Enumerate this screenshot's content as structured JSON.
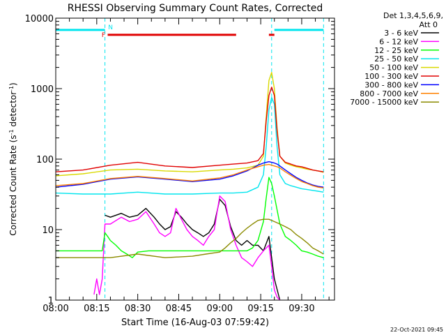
{
  "chart_data": {
    "type": "line",
    "title": "RHESSI Observing Summary Count Rates, Corrected",
    "xlabel": "Start Time (16-Aug-03 07:59:42)",
    "ylabel_main": "Corrected Count Rate (s",
    "ylabel_sup": "-1",
    "ylabel_mid": " detector",
    "ylabel_sup2": "-1",
    "ylabel_end": ")",
    "yscale": "log",
    "ylim": [
      1,
      10000
    ],
    "xlim_min": [
      0,
      102
    ],
    "x_ticks": [
      {
        "min": 0,
        "label": "08:00"
      },
      {
        "min": 15,
        "label": "08:15"
      },
      {
        "min": 30,
        "label": "08:30"
      },
      {
        "min": 45,
        "label": "08:45"
      },
      {
        "min": 60,
        "label": "09:00"
      },
      {
        "min": 75,
        "label": "09:15"
      },
      {
        "min": 90,
        "label": "09:30"
      }
    ],
    "y_ticks": [
      {
        "value": 1,
        "label": "1"
      },
      {
        "value": 10,
        "label": "10"
      },
      {
        "value": 100,
        "label": "100"
      },
      {
        "value": 1000,
        "label": "1000"
      },
      {
        "value": 10000,
        "label": "10000"
      }
    ],
    "legend_header": [
      "Det 1,3,4,5,6,9,",
      "Att 0"
    ],
    "legend_position": "top-right",
    "footer": "22-Oct-2021 09:45",
    "flags": [
      {
        "label": "N",
        "color": "#00e5ee",
        "level": 6800,
        "segments": [
          [
            0,
            18
          ],
          [
            80,
            98
          ]
        ]
      },
      {
        "label": "F",
        "color": "#e00000",
        "level": 5800,
        "segments": [
          [
            19,
            66
          ],
          [
            78,
            80
          ]
        ]
      }
    ],
    "night_markers_min": [
      18,
      79,
      98
    ],
    "series": [
      {
        "name": "3 - 6 keV",
        "color": "#000000",
        "x": [
          0,
          17,
          18,
          20,
          24,
          27,
          30,
          33,
          36,
          38,
          40,
          42,
          44,
          46,
          48,
          50,
          52,
          54,
          56,
          58,
          60,
          62,
          64,
          66,
          68,
          70,
          72,
          74,
          76,
          78,
          80,
          82,
          98
        ],
        "y": [
          null,
          null,
          16,
          15,
          17,
          15,
          16,
          20,
          15,
          12,
          10,
          11,
          18,
          15,
          12,
          10,
          9,
          8,
          9,
          12,
          27,
          22,
          11,
          7,
          6,
          7,
          6,
          6,
          5,
          8,
          2,
          1,
          null
        ]
      },
      {
        "name": "6 - 12 keV",
        "color": "#ff00ff",
        "x": [
          0,
          14,
          15,
          16,
          17,
          18,
          20,
          24,
          27,
          30,
          33,
          36,
          38,
          40,
          42,
          44,
          46,
          48,
          50,
          52,
          54,
          56,
          58,
          60,
          62,
          64,
          66,
          68,
          70,
          72,
          74,
          76,
          78,
          79,
          80,
          81,
          82,
          98
        ],
        "y": [
          null,
          1.2,
          2,
          1.2,
          2,
          12,
          12,
          15,
          13,
          14,
          18,
          12,
          9,
          8,
          9,
          20,
          14,
          10,
          8,
          7,
          6,
          8,
          10,
          30,
          25,
          10,
          6,
          4,
          3.5,
          3,
          4,
          5,
          6,
          3,
          1.4,
          1.1,
          1,
          null
        ]
      },
      {
        "name": "12 - 25 keV",
        "color": "#00ff00",
        "x": [
          0,
          17,
          18,
          19,
          20,
          22,
          24,
          26,
          28,
          30,
          34,
          40,
          50,
          60,
          66,
          70,
          72,
          74,
          76,
          77,
          78,
          79,
          80,
          82,
          84,
          86,
          88,
          90,
          92,
          94,
          96,
          98
        ],
        "y": [
          5,
          5,
          9,
          8,
          7,
          6,
          5,
          4.5,
          4,
          4.8,
          5,
          5,
          5,
          5,
          5,
          5,
          5.5,
          7,
          13,
          28,
          55,
          45,
          30,
          12,
          8,
          7,
          6,
          5,
          4.8,
          4.5,
          4.2,
          4
        ]
      },
      {
        "name": "25 - 50 keV",
        "color": "#00e5ee",
        "x": [
          0,
          10,
          20,
          30,
          40,
          50,
          60,
          65,
          70,
          74,
          76,
          77,
          78,
          79,
          80,
          81,
          82,
          84,
          86,
          88,
          90,
          92,
          94,
          96,
          98
        ],
        "y": [
          33,
          32,
          32,
          34,
          32,
          32,
          33,
          33,
          34,
          40,
          60,
          150,
          500,
          750,
          600,
          150,
          60,
          45,
          42,
          40,
          38,
          37,
          36,
          35,
          34
        ]
      },
      {
        "name": "50 - 100 keV",
        "color": "#d9d900",
        "x": [
          0,
          10,
          20,
          30,
          40,
          50,
          60,
          65,
          70,
          74,
          76,
          77,
          78,
          79,
          80,
          81,
          82,
          84,
          86,
          88,
          90,
          92,
          94,
          96,
          98
        ],
        "y": [
          58,
          62,
          70,
          72,
          68,
          66,
          70,
          72,
          75,
          82,
          110,
          400,
          1300,
          1700,
          1000,
          280,
          110,
          88,
          82,
          78,
          75,
          72,
          70,
          68,
          65
        ]
      },
      {
        "name": "100 - 300 keV",
        "color": "#e00000",
        "x": [
          0,
          10,
          20,
          30,
          40,
          50,
          60,
          65,
          70,
          74,
          76,
          77,
          78,
          79,
          80,
          81,
          82,
          84,
          86,
          88,
          90,
          92,
          94,
          96,
          98
        ],
        "y": [
          66,
          70,
          82,
          90,
          80,
          76,
          82,
          85,
          88,
          95,
          120,
          350,
          800,
          1050,
          800,
          250,
          110,
          90,
          85,
          80,
          78,
          74,
          70,
          68,
          66
        ]
      },
      {
        "name": "300 - 800 keV",
        "color": "#0000ff",
        "x": [
          0,
          10,
          20,
          30,
          40,
          50,
          60,
          65,
          70,
          74,
          76,
          78,
          79,
          80,
          81,
          82,
          84,
          86,
          88,
          90,
          92,
          94,
          96,
          98
        ],
        "y": [
          40,
          44,
          52,
          56,
          52,
          48,
          52,
          58,
          68,
          82,
          88,
          92,
          90,
          88,
          85,
          80,
          70,
          62,
          55,
          50,
          46,
          43,
          41,
          40
        ]
      },
      {
        "name": "800 - 7000 keV",
        "color": "#ff8000",
        "x": [
          0,
          10,
          20,
          30,
          40,
          50,
          60,
          65,
          70,
          74,
          76,
          78,
          79,
          80,
          81,
          82,
          84,
          86,
          88,
          90,
          92,
          94,
          96,
          98
        ],
        "y": [
          42,
          45,
          53,
          57,
          53,
          49,
          54,
          60,
          70,
          78,
          82,
          84,
          82,
          80,
          78,
          75,
          66,
          59,
          53,
          48,
          45,
          42,
          40,
          39
        ]
      },
      {
        "name": "7000 - 15000 keV",
        "color": "#8b8b00",
        "x": [
          0,
          10,
          20,
          30,
          40,
          50,
          55,
          60,
          62,
          64,
          66,
          68,
          70,
          72,
          74,
          76,
          78,
          80,
          82,
          84,
          86,
          88,
          90,
          92,
          94,
          96,
          98
        ],
        "y": [
          4,
          4,
          4,
          4.5,
          4,
          4.2,
          4.5,
          4.8,
          5.5,
          6.5,
          7.5,
          9,
          10.5,
          12,
          13.5,
          14,
          14,
          13,
          12,
          11,
          10,
          8.5,
          7.5,
          6.5,
          5.5,
          5,
          4.5
        ]
      }
    ]
  }
}
